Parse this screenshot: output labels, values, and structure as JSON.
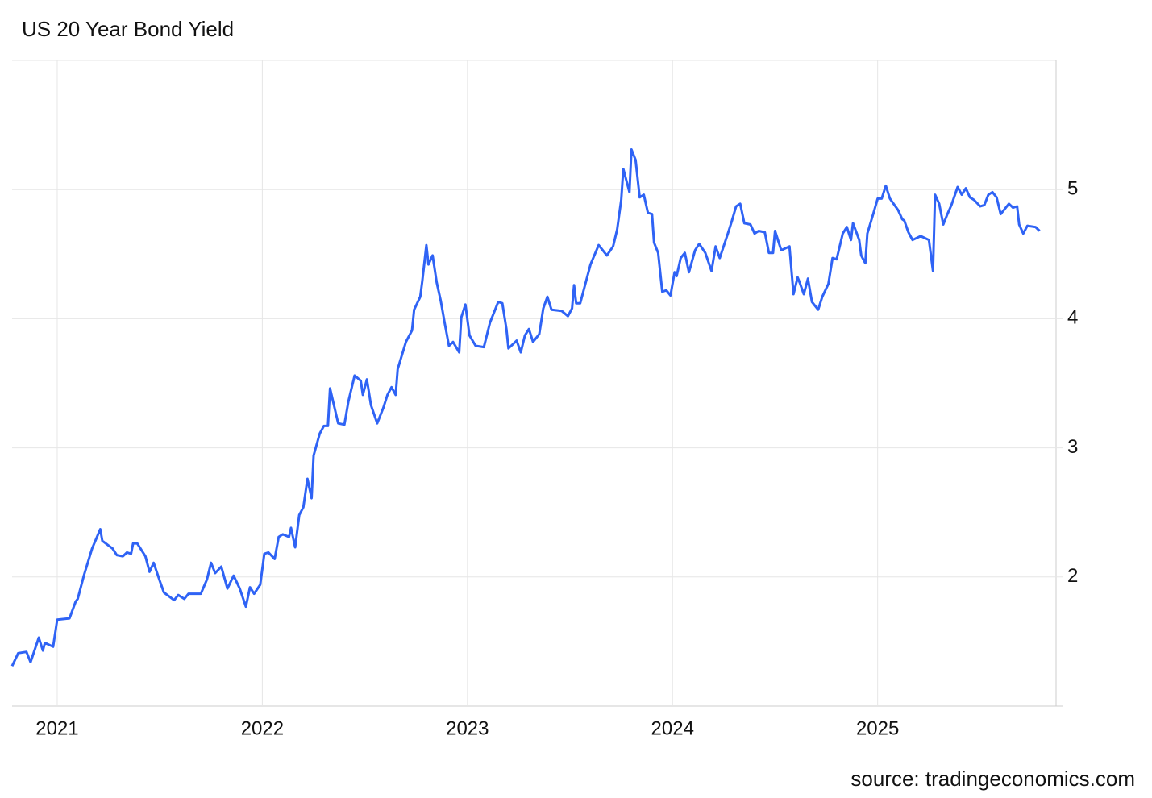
{
  "chart_data": {
    "type": "line",
    "title": "US 20 Year Bond Yield",
    "source": "source: tradingeconomics.com",
    "xlim": [
      2020.78,
      2025.87
    ],
    "xticks": [
      2021,
      2022,
      2023,
      2024,
      2025
    ],
    "ylim": [
      1,
      6
    ],
    "yticks": [
      2,
      3,
      4,
      5
    ],
    "grid": true,
    "series": [
      {
        "color": "#2f63f5",
        "x": [
          2020.78,
          2020.81,
          2020.85,
          2020.87,
          2020.91,
          2020.93,
          2020.94,
          2020.98,
          2021.0,
          2021.06,
          2021.09,
          2021.1,
          2021.13,
          2021.17,
          2021.21,
          2021.22,
          2021.27,
          2021.29,
          2021.32,
          2021.34,
          2021.36,
          2021.37,
          2021.39,
          2021.43,
          2021.45,
          2021.47,
          2021.5,
          2021.52,
          2021.57,
          2021.59,
          2021.62,
          2021.64,
          2021.7,
          2021.73,
          2021.75,
          2021.77,
          2021.8,
          2021.83,
          2021.86,
          2021.89,
          2021.92,
          2021.94,
          2021.96,
          2021.99,
          2022.01,
          2022.03,
          2022.06,
          2022.08,
          2022.1,
          2022.13,
          2022.14,
          2022.16,
          2022.18,
          2022.2,
          2022.22,
          2022.24,
          2022.25,
          2022.28,
          2022.3,
          2022.32,
          2022.33,
          2022.37,
          2022.4,
          2022.42,
          2022.45,
          2022.48,
          2022.49,
          2022.51,
          2022.53,
          2022.56,
          2022.59,
          2022.61,
          2022.63,
          2022.65,
          2022.66,
          2022.7,
          2022.73,
          2022.74,
          2022.77,
          2022.78,
          2022.8,
          2022.81,
          2022.83,
          2022.85,
          2022.87,
          2022.89,
          2022.91,
          2022.93,
          2022.96,
          2022.97,
          2022.99,
          2023.01,
          2023.04,
          2023.08,
          2023.11,
          2023.15,
          2023.17,
          2023.19,
          2023.2,
          2023.24,
          2023.26,
          2023.28,
          2023.3,
          2023.32,
          2023.35,
          2023.37,
          2023.39,
          2023.41,
          2023.46,
          2023.49,
          2023.51,
          2023.52,
          2023.53,
          2023.55,
          2023.6,
          2023.64,
          2023.68,
          2023.71,
          2023.73,
          2023.75,
          2023.76,
          2023.79,
          2023.8,
          2023.82,
          2023.84,
          2023.86,
          2023.88,
          2023.9,
          2023.91,
          2023.93,
          2023.95,
          2023.97,
          2023.99,
          2024.01,
          2024.02,
          2024.04,
          2024.06,
          2024.08,
          2024.11,
          2024.13,
          2024.16,
          2024.19,
          2024.21,
          2024.23,
          2024.27,
          2024.29,
          2024.31,
          2024.33,
          2024.35,
          2024.38,
          2024.4,
          2024.42,
          2024.45,
          2024.47,
          2024.49,
          2024.5,
          2024.53,
          2024.57,
          2024.59,
          2024.61,
          2024.62,
          2024.64,
          2024.66,
          2024.68,
          2024.71,
          2024.73,
          2024.76,
          2024.78,
          2024.8,
          2024.83,
          2024.85,
          2024.87,
          2024.88,
          2024.91,
          2024.92,
          2024.94,
          2024.95,
          2024.98,
          2025.0,
          2025.02,
          2025.04,
          2025.06,
          2025.1,
          2025.12,
          2025.13,
          2025.15,
          2025.17,
          2025.21,
          2025.25,
          2025.27,
          2025.28,
          2025.3,
          2025.32,
          2025.34,
          2025.36,
          2025.39,
          2025.41,
          2025.43,
          2025.45,
          2025.47,
          2025.5,
          2025.52,
          2025.54,
          2025.56,
          2025.58,
          2025.6,
          2025.64,
          2025.66,
          2025.68,
          2025.69,
          2025.71,
          2025.73,
          2025.77,
          2025.79
        ],
        "values": [
          1.31,
          1.41,
          1.42,
          1.34,
          1.53,
          1.43,
          1.49,
          1.46,
          1.67,
          1.68,
          1.81,
          1.83,
          2.01,
          2.22,
          2.37,
          2.28,
          2.22,
          2.17,
          2.16,
          2.19,
          2.18,
          2.26,
          2.26,
          2.16,
          2.04,
          2.11,
          1.97,
          1.88,
          1.82,
          1.86,
          1.83,
          1.87,
          1.87,
          1.98,
          2.11,
          2.03,
          2.08,
          1.91,
          2.01,
          1.91,
          1.77,
          1.92,
          1.87,
          1.94,
          2.18,
          2.19,
          2.14,
          2.31,
          2.33,
          2.31,
          2.38,
          2.23,
          2.48,
          2.54,
          2.76,
          2.61,
          2.94,
          3.11,
          3.17,
          3.17,
          3.46,
          3.19,
          3.18,
          3.36,
          3.56,
          3.52,
          3.41,
          3.53,
          3.33,
          3.19,
          3.31,
          3.41,
          3.47,
          3.41,
          3.61,
          3.82,
          3.91,
          4.07,
          4.17,
          4.29,
          4.57,
          4.42,
          4.49,
          4.28,
          4.14,
          3.96,
          3.79,
          3.82,
          3.74,
          4.01,
          4.11,
          3.87,
          3.79,
          3.78,
          3.97,
          4.13,
          4.12,
          3.92,
          3.77,
          3.83,
          3.74,
          3.87,
          3.92,
          3.82,
          3.88,
          4.08,
          4.17,
          4.07,
          4.06,
          4.02,
          4.08,
          4.26,
          4.12,
          4.12,
          4.42,
          4.57,
          4.49,
          4.56,
          4.69,
          4.92,
          5.16,
          4.98,
          5.31,
          5.23,
          4.94,
          4.96,
          4.82,
          4.81,
          4.59,
          4.51,
          4.21,
          4.22,
          4.18,
          4.36,
          4.33,
          4.47,
          4.51,
          4.36,
          4.53,
          4.58,
          4.51,
          4.37,
          4.56,
          4.47,
          4.66,
          4.76,
          4.87,
          4.89,
          4.74,
          4.73,
          4.66,
          4.68,
          4.67,
          4.51,
          4.51,
          4.68,
          4.53,
          4.56,
          4.19,
          4.32,
          4.28,
          4.19,
          4.31,
          4.13,
          4.07,
          4.17,
          4.27,
          4.47,
          4.46,
          4.66,
          4.71,
          4.61,
          4.74,
          4.61,
          4.49,
          4.43,
          4.66,
          4.82,
          4.93,
          4.93,
          5.03,
          4.93,
          4.84,
          4.77,
          4.76,
          4.67,
          4.61,
          4.64,
          4.61,
          4.37,
          4.96,
          4.89,
          4.73,
          4.81,
          4.88,
          5.02,
          4.96,
          5.01,
          4.94,
          4.92,
          4.87,
          4.88,
          4.96,
          4.98,
          4.94,
          4.81,
          4.89,
          4.86,
          4.87,
          4.73,
          4.66,
          4.72,
          4.71,
          4.68
        ]
      }
    ]
  }
}
